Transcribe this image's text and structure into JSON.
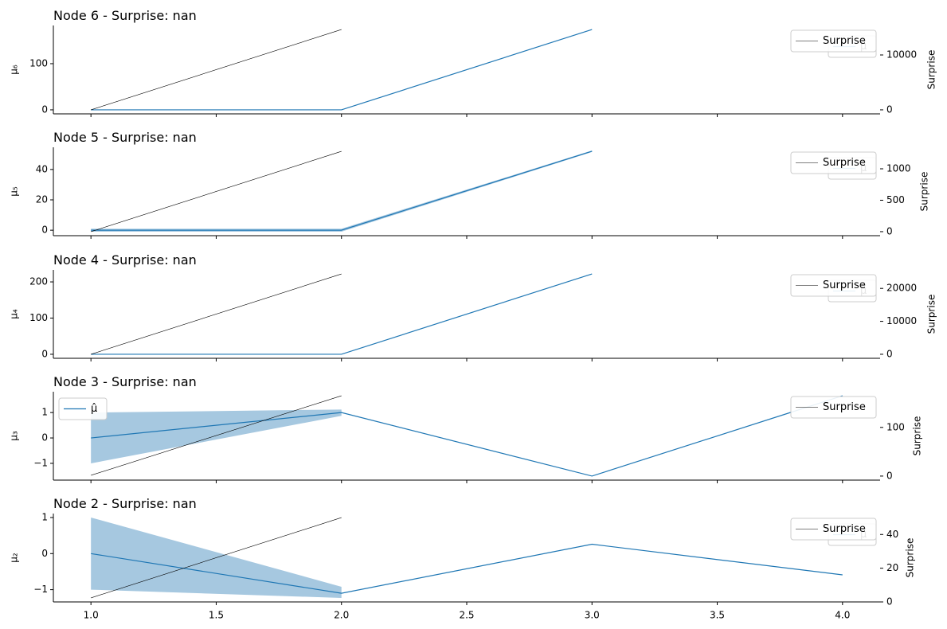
{
  "chart_data": [
    {
      "type": "line",
      "title": "Node 6 - Surprise: nan",
      "ylabel": "μ₆",
      "y2label": "Surprise",
      "xlim": [
        0.85,
        4.15
      ],
      "ylim": [
        -8.7,
        182.7
      ],
      "yticks": [
        0,
        100
      ],
      "y2lim": [
        -732,
        15370
      ],
      "y2ticks": [
        0,
        10000
      ],
      "legend": "upper right",
      "y2_legend": "upper right",
      "series": [
        {
          "name": "μ̂",
          "color": "#1f77b4",
          "x": [
            1,
            2,
            3
          ],
          "values": [
            0,
            0,
            174
          ]
        },
        {
          "name": "Surprise",
          "color": "#000000",
          "axis": "y2",
          "x": [
            1,
            2
          ],
          "values": [
            0,
            14638
          ]
        }
      ]
    },
    {
      "type": "line",
      "title": "Node 5 - Surprise: nan",
      "ylabel": "μ₅",
      "y2label": "Surprise",
      "xlim": [
        0.85,
        4.15
      ],
      "ylim": [
        -3.6,
        54.6
      ],
      "yticks": [
        0,
        20,
        40
      ],
      "y2lim": [
        -64,
        1342
      ],
      "y2ticks": [
        0,
        500,
        1000
      ],
      "legend": "upper right",
      "y2_legend": "upper right",
      "series": [
        {
          "name": "μ̂",
          "color": "#1f77b4",
          "x": [
            1,
            2,
            3
          ],
          "values": [
            0,
            0,
            52
          ],
          "band_lower": [
            -1,
            -1,
            51.5
          ],
          "band_upper": [
            1,
            1,
            52.5
          ],
          "band_color": "#a6c8e0"
        },
        {
          "name": "Surprise",
          "color": "#000000",
          "axis": "y2",
          "x": [
            1,
            2
          ],
          "values": [
            0,
            1278
          ]
        }
      ]
    },
    {
      "type": "line",
      "title": "Node 4 - Surprise: nan",
      "ylabel": "μ₄",
      "y2label": "Surprise",
      "xlim": [
        0.85,
        4.15
      ],
      "ylim": [
        -11.1,
        233.1
      ],
      "yticks": [
        0,
        100,
        200
      ],
      "y2lim": [
        -1220,
        25610
      ],
      "y2ticks": [
        0,
        10000,
        20000
      ],
      "legend": "upper right",
      "y2_legend": "upper right",
      "series": [
        {
          "name": "μ̂",
          "color": "#1f77b4",
          "x": [
            1,
            2,
            3
          ],
          "values": [
            0,
            0,
            222
          ]
        },
        {
          "name": "Surprise",
          "color": "#000000",
          "axis": "y2",
          "x": [
            1,
            2
          ],
          "values": [
            0,
            24390
          ]
        }
      ]
    },
    {
      "type": "line",
      "title": "Node 3 - Surprise: nan",
      "ylabel": "μ₃",
      "y2label": "Surprise",
      "xlim": [
        0.85,
        4.15
      ],
      "ylim": [
        -1.66,
        1.82
      ],
      "yticks": [
        {
          "value": -1,
          "label": "−1"
        },
        0,
        1
      ],
      "y2lim": [
        -8.3,
        173.3
      ],
      "y2ticks": [
        0,
        100
      ],
      "legend": "upper left",
      "y2_legend": "upper right",
      "series": [
        {
          "name": "μ̂",
          "color": "#1f77b4",
          "x": [
            1,
            2,
            3,
            4
          ],
          "values": [
            0,
            1,
            -1.5,
            1.66
          ],
          "band_lower": [
            -1,
            0.87,
            null,
            null
          ],
          "band_upper": [
            1,
            1.12,
            null,
            null
          ],
          "band_color": "#a6c8e0"
        },
        {
          "name": "Surprise",
          "color": "#000000",
          "axis": "y2",
          "x": [
            1,
            2
          ],
          "values": [
            1.6,
            165
          ]
        }
      ]
    },
    {
      "type": "line",
      "title": "Node 2 - Surprise: nan",
      "ylabel": "μ₂",
      "y2label": "Surprise",
      "xlim": [
        0.85,
        4.15
      ],
      "ylim": [
        -1.34,
        1.11
      ],
      "yticks": [
        {
          "value": -1,
          "label": "−1"
        },
        0,
        1
      ],
      "y2lim": [
        0,
        52.4
      ],
      "y2ticks": [
        0,
        20,
        40
      ],
      "xticks": [
        {
          "value": 1,
          "label": "1.0"
        },
        {
          "value": 1.5,
          "label": "1.5"
        },
        {
          "value": 2,
          "label": "2.0"
        },
        {
          "value": 2.5,
          "label": "2.5"
        },
        {
          "value": 3,
          "label": "3.0"
        },
        {
          "value": 3.5,
          "label": "3.5"
        },
        {
          "value": 4,
          "label": "4.0"
        }
      ],
      "legend": "upper right",
      "y2_legend": "upper right",
      "series": [
        {
          "name": "μ̂",
          "color": "#1f77b4",
          "x": [
            1,
            2,
            3,
            4
          ],
          "values": [
            0,
            -1.1,
            0.26,
            -0.59
          ],
          "band_lower": [
            -1,
            -1.23,
            null,
            null
          ],
          "band_upper": [
            1,
            -0.92,
            null,
            null
          ],
          "band_color": "#a6c8e0"
        },
        {
          "name": "Surprise",
          "color": "#000000",
          "axis": "y2",
          "x": [
            1,
            2
          ],
          "values": [
            2.4,
            50
          ]
        }
      ]
    }
  ]
}
